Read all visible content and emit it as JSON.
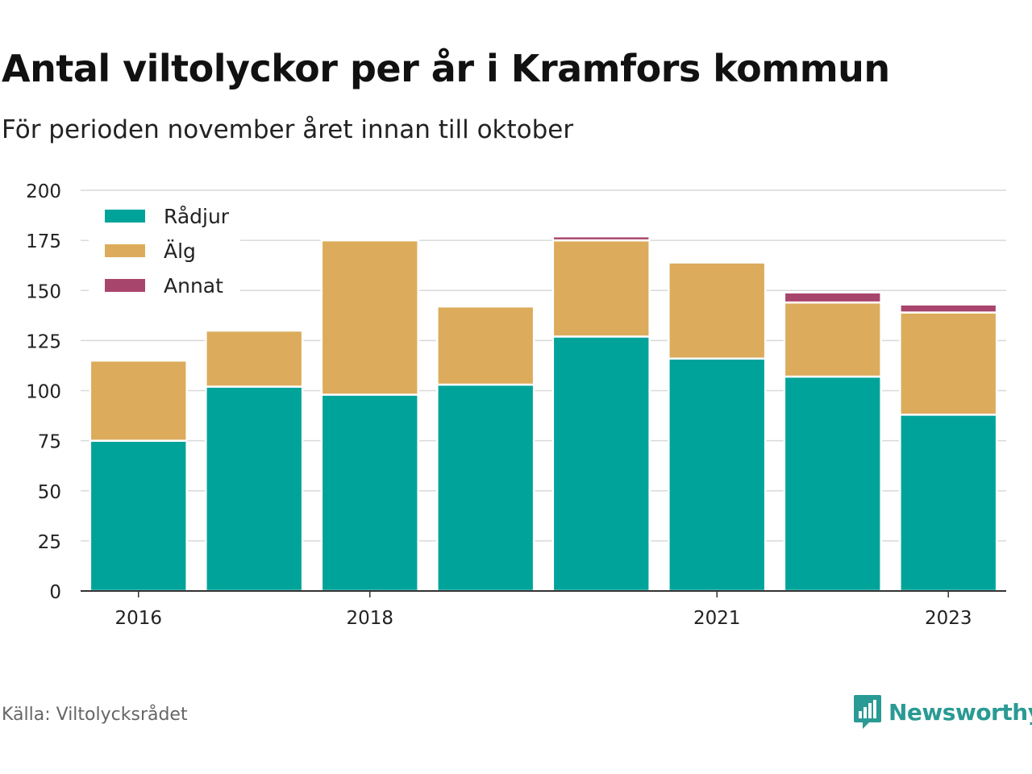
{
  "title": "Antal viltolyckor per år i Kramfors kommun",
  "subtitle": "För perioden november året innan till oktober",
  "source": "Källa: Viltolycksrådet",
  "brand": {
    "name": "Newsworthy",
    "icon": "newsworthy-logo-icon",
    "color": "#2a9a94"
  },
  "chart_data": {
    "type": "bar",
    "stacked": true,
    "categories": [
      "2016",
      "2017",
      "2018",
      "2019",
      "2020",
      "2021",
      "2022",
      "2023"
    ],
    "x_tick_labels": [
      "2016",
      "",
      "2018",
      "",
      "",
      "2021",
      "",
      "2023"
    ],
    "series": [
      {
        "name": "Rådjur",
        "color": "#00a39a",
        "values": [
          75,
          102,
          98,
          103,
          127,
          116,
          107,
          88
        ]
      },
      {
        "name": "Älg",
        "color": "#dcac5c",
        "values": [
          40,
          28,
          77,
          39,
          48,
          48,
          37,
          51
        ]
      },
      {
        "name": "Annat",
        "color": "#a8456c",
        "values": [
          0,
          1,
          0,
          0,
          2,
          1,
          5,
          4
        ]
      }
    ],
    "ylim": [
      0,
      200
    ],
    "yticks": [
      0,
      25,
      50,
      75,
      100,
      125,
      150,
      175,
      200
    ],
    "grid": true,
    "legend_position": "top-left"
  }
}
